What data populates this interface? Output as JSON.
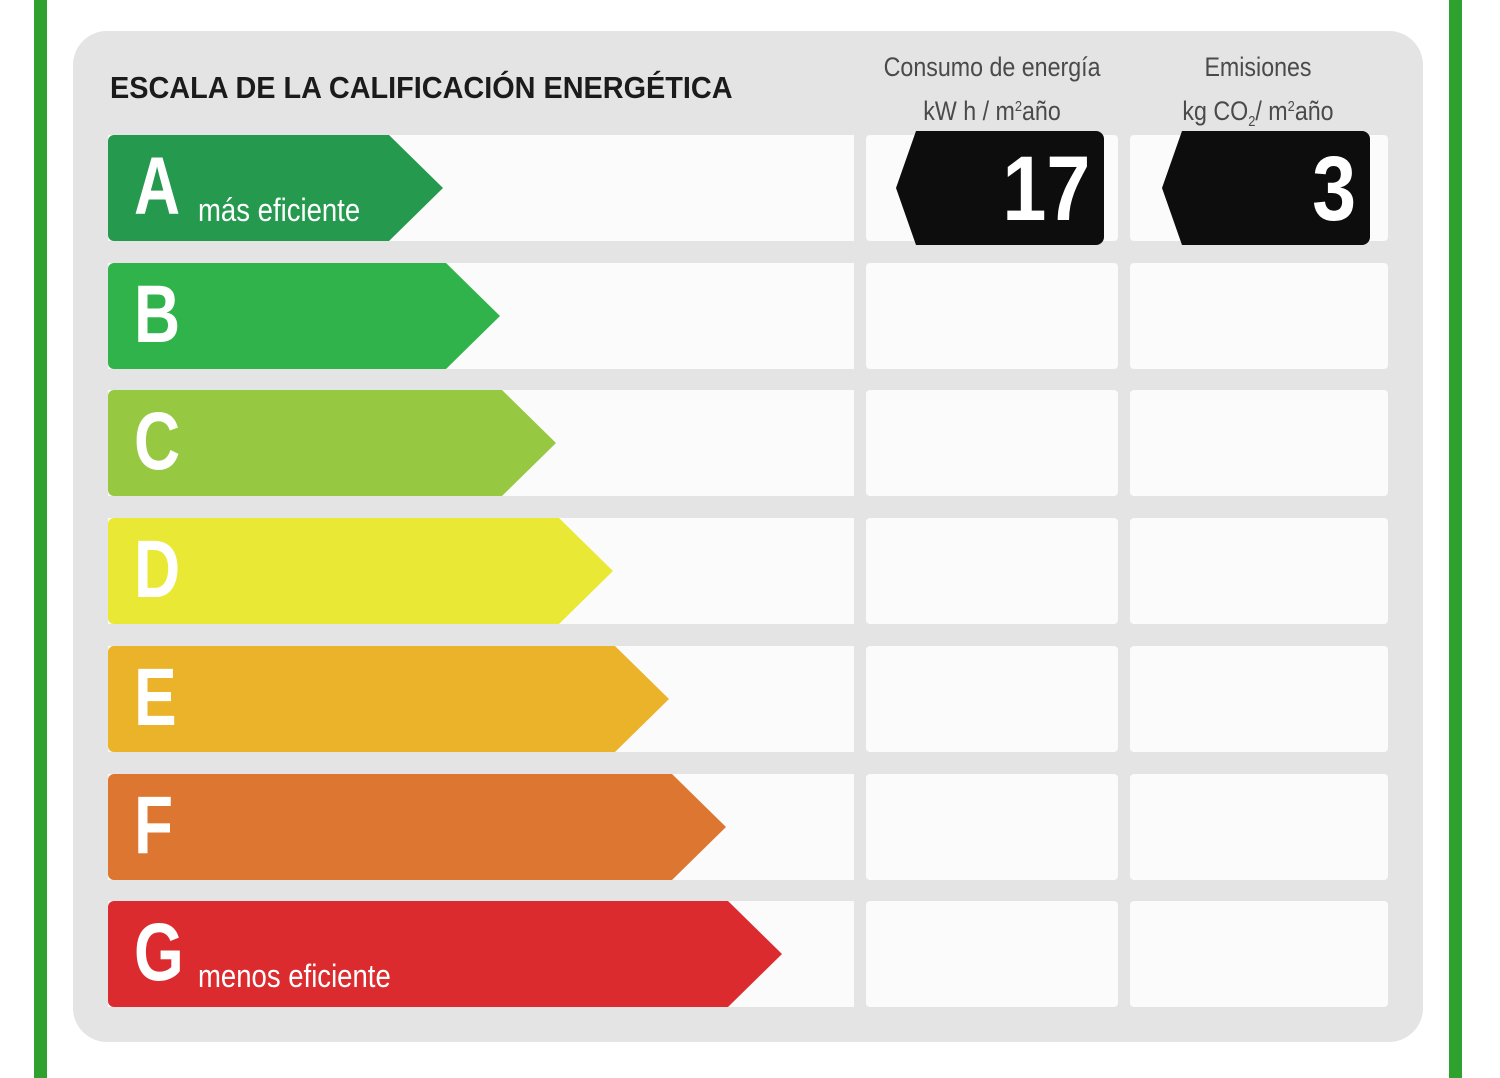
{
  "title": "ESCALA DE LA CALIFICACIÓN ENERGÉTICA",
  "columns": {
    "consumo": {
      "line1": "Consumo de energía",
      "unit_pre": "kW h / m",
      "unit_sup": "2",
      "unit_post": "año"
    },
    "emisiones": {
      "line1": "Emisiones",
      "unit_pre": "kg CO",
      "unit_sub": "2",
      "unit_mid": "/ m",
      "unit_sup": "2",
      "unit_post": "año"
    }
  },
  "rating": {
    "selected": "A",
    "consumo_value": "17",
    "emisiones_value": "3"
  },
  "classes": [
    {
      "letter": "A",
      "label": "más eficiente",
      "color": "#259a4f"
    },
    {
      "letter": "B",
      "label": "",
      "color": "#31b34c"
    },
    {
      "letter": "C",
      "label": "",
      "color": "#96c941"
    },
    {
      "letter": "D",
      "label": "",
      "color": "#e9e935"
    },
    {
      "letter": "E",
      "label": "",
      "color": "#ebb329"
    },
    {
      "letter": "F",
      "label": "",
      "color": "#dd7630"
    },
    {
      "letter": "G",
      "label": "menos eficiente",
      "color": "#dc2b2e"
    }
  ]
}
